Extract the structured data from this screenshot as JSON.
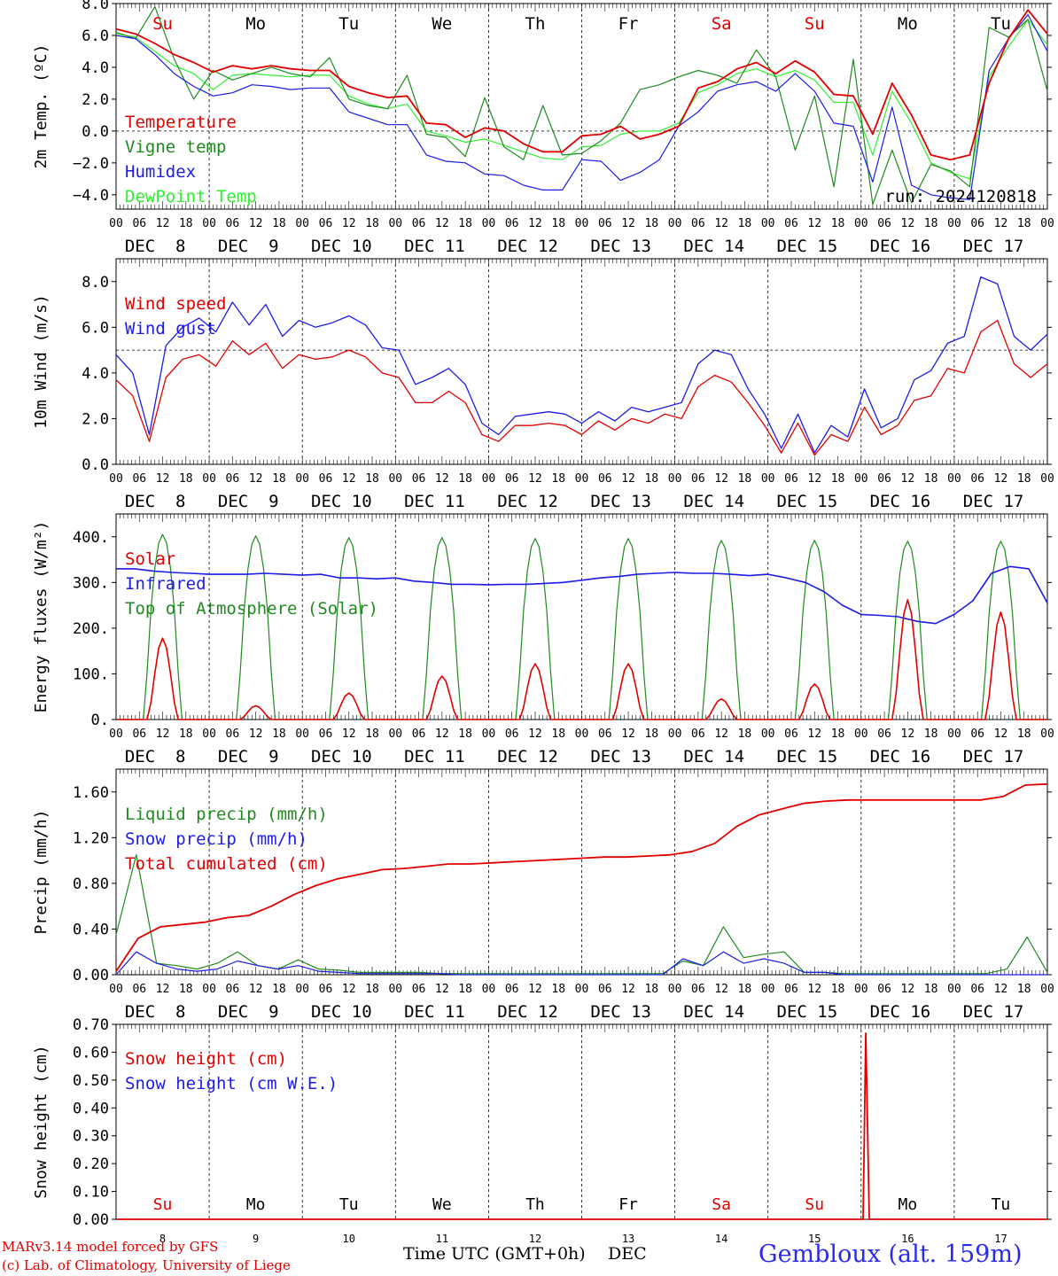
{
  "colors": {
    "red": "#e00000",
    "green": "#1f8a1f",
    "blue": "#1c1ce6",
    "lightgreen": "#33ee33",
    "axis": "#000000"
  },
  "footer": {
    "model_line": "MARv3.14 model forced by GFS",
    "copyright_line": "(c) Lab. of Climatology, University of Liege",
    "time_axis_label": "Time UTC (GMT+0h)",
    "month_label": "DEC",
    "station": "Gembloux (alt. 159m)"
  },
  "chart_data": [
    {
      "type": "line",
      "ylabel": "2m Temp. (ºC)",
      "ylim": [
        -4.9,
        8.0
      ],
      "yticks": [
        8.0,
        6.0,
        4.0,
        2.0,
        0.0,
        -2.0,
        -4.0
      ],
      "ytick_labels": [
        "8.0",
        "6.0",
        "4.0",
        "2.0",
        "0.0",
        "−2.0",
        "−4.0"
      ],
      "reference_line": 0.0,
      "days": [
        "Su",
        "Mo",
        "Tu",
        "We",
        "Th",
        "Fr",
        "Sa",
        "Su",
        "Mo",
        "Tu"
      ],
      "day_colors": [
        "red",
        "black",
        "black",
        "black",
        "black",
        "black",
        "red",
        "red",
        "black",
        "black"
      ],
      "date_labels": [
        "DEC  8",
        "DEC  9",
        "DEC 10",
        "DEC 11",
        "DEC 12",
        "DEC 13",
        "DEC 14",
        "DEC 15",
        "DEC 16",
        "DEC 17"
      ],
      "hour_labels": [
        "00",
        "06",
        "12",
        "18"
      ],
      "run_label": "run: 2024120818",
      "x_step_hours": 6,
      "series": [
        {
          "name": "Temperature",
          "color": "red",
          "values": [
            6.4,
            6.1,
            5.5,
            4.8,
            4.3,
            3.7,
            4.1,
            3.9,
            4.1,
            3.9,
            3.8,
            3.8,
            2.8,
            2.4,
            2.1,
            2.2,
            0.5,
            0.4,
            -0.4,
            0.2,
            0.0,
            -0.8,
            -1.3,
            -1.3,
            -0.3,
            -0.2,
            0.3,
            -0.5,
            -0.2,
            0.3,
            2.7,
            3.1,
            3.9,
            4.3,
            3.6,
            4.4,
            3.7,
            2.3,
            2.2,
            -0.2,
            3.0,
            1.0,
            -1.5,
            -1.8,
            -1.5,
            3.0,
            5.8,
            7.6,
            6.1
          ]
        },
        {
          "name": "Vigne temp",
          "color": "green",
          "values": [
            6.2,
            5.8,
            7.8,
            4.5,
            2.0,
            3.8,
            3.2,
            3.6,
            4.0,
            3.6,
            3.4,
            4.6,
            2.0,
            1.6,
            1.4,
            3.5,
            -0.2,
            -0.4,
            -1.6,
            2.1,
            -1.0,
            -1.8,
            1.6,
            -1.5,
            -1.4,
            -0.6,
            0.5,
            2.6,
            2.9,
            3.4,
            3.8,
            3.5,
            3.0,
            5.1,
            3.4,
            -1.2,
            2.2,
            -3.5,
            4.5,
            -4.6,
            -1.2,
            -4.5,
            -2.1,
            -2.5,
            -3.5,
            6.5,
            5.9,
            7.0,
            2.5
          ]
        },
        {
          "name": "Humidex",
          "color": "blue",
          "values": [
            6.0,
            5.8,
            4.8,
            3.6,
            2.8,
            2.2,
            2.4,
            2.9,
            2.8,
            2.6,
            2.7,
            2.7,
            1.2,
            0.8,
            0.4,
            0.4,
            -1.5,
            -1.9,
            -2.0,
            -2.7,
            -2.8,
            -3.4,
            -3.7,
            -3.7,
            -1.8,
            -1.9,
            -3.1,
            -2.6,
            -1.8,
            0.3,
            1.2,
            2.5,
            2.9,
            3.1,
            2.5,
            3.6,
            2.5,
            0.5,
            0.3,
            -3.2,
            1.5,
            -3.4,
            -4.0,
            -4.2,
            -4.3,
            3.8,
            5.8,
            7.3,
            5.0
          ]
        },
        {
          "name": "DewPoint Temp",
          "color": "lightgreen",
          "values": [
            6.1,
            5.9,
            5.0,
            4.1,
            3.6,
            2.6,
            3.5,
            3.6,
            3.5,
            3.4,
            3.5,
            3.5,
            2.2,
            1.7,
            1.4,
            1.7,
            0.0,
            -0.3,
            -0.7,
            -0.5,
            -0.9,
            -1.3,
            -1.7,
            -1.8,
            -1.0,
            -0.9,
            -0.2,
            0.0,
            0.0,
            0.5,
            2.4,
            2.9,
            3.6,
            3.9,
            3.4,
            3.8,
            3.2,
            1.8,
            1.8,
            -1.5,
            2.5,
            0.5,
            -2.0,
            -2.6,
            -3.0,
            3.4,
            5.3,
            7.0,
            5.4
          ]
        }
      ]
    },
    {
      "type": "line",
      "ylabel": "10m Wind (m/s)",
      "ylim": [
        0,
        9.0
      ],
      "yticks": [
        0,
        2,
        4,
        6,
        8
      ],
      "ytick_labels": [
        "0.0",
        "2.0",
        "4.0",
        "6.0",
        "8.0"
      ],
      "reference_line": 5.0,
      "date_labels": [
        "DEC  8",
        "DEC  9",
        "DEC 10",
        "DEC 11",
        "DEC 12",
        "DEC 13",
        "DEC 14",
        "DEC 15",
        "DEC 16",
        "DEC 17"
      ],
      "hour_labels": [
        "00",
        "06",
        "12",
        "18"
      ],
      "x_step_hours": 6,
      "series": [
        {
          "name": "Wind speed",
          "color": "red",
          "values": [
            3.7,
            3.0,
            1.0,
            3.8,
            4.6,
            4.8,
            4.3,
            5.4,
            4.8,
            5.3,
            4.2,
            4.8,
            4.6,
            4.7,
            5.0,
            4.7,
            4.0,
            3.8,
            2.7,
            2.7,
            3.2,
            2.7,
            1.3,
            1.0,
            1.7,
            1.7,
            1.8,
            1.7,
            1.3,
            1.9,
            1.5,
            2.0,
            1.8,
            2.2,
            2.0,
            3.4,
            3.9,
            3.6,
            2.7,
            1.7,
            0.5,
            1.8,
            0.4,
            1.3,
            1.0,
            2.5,
            1.3,
            1.7,
            2.8,
            3.0,
            4.2,
            4.0,
            5.8,
            6.3,
            4.4,
            3.8,
            4.4
          ]
        },
        {
          "name": "Wind gust",
          "color": "blue",
          "values": [
            4.8,
            4.0,
            1.3,
            5.2,
            6.0,
            6.4,
            5.8,
            7.1,
            6.1,
            7.0,
            5.6,
            6.3,
            6.0,
            6.2,
            6.5,
            6.1,
            5.1,
            5.0,
            3.5,
            3.8,
            4.2,
            3.5,
            1.8,
            1.3,
            2.1,
            2.2,
            2.3,
            2.2,
            1.8,
            2.3,
            1.9,
            2.5,
            2.3,
            2.5,
            2.7,
            4.4,
            5.0,
            4.8,
            3.3,
            2.2,
            0.7,
            2.2,
            0.5,
            1.7,
            1.2,
            3.3,
            1.6,
            2.0,
            3.7,
            4.1,
            5.3,
            5.6,
            8.2,
            7.9,
            5.6,
            5.0,
            5.7
          ]
        }
      ]
    },
    {
      "type": "line",
      "ylabel": "Energy fluxes (W/m²)",
      "ylim": [
        0,
        450
      ],
      "yticks": [
        0,
        100,
        200,
        300,
        400
      ],
      "ytick_labels": [
        "0.",
        "100.",
        "200.",
        "300.",
        "400."
      ],
      "date_labels": [
        "DEC  8",
        "DEC  9",
        "DEC 10",
        "DEC 11",
        "DEC 12",
        "DEC 13",
        "DEC 14",
        "DEC 15",
        "DEC 16",
        "DEC 17"
      ],
      "hour_labels": [
        "00",
        "06",
        "12",
        "18"
      ],
      "x_step_hours": 6,
      "series": [
        {
          "name": "Solar",
          "color": "red",
          "daily_peak_wm2": [
            178,
            30,
            58,
            95,
            122,
            122,
            45,
            78,
            262,
            235
          ]
        },
        {
          "name": "Infrared",
          "color": "blue",
          "values": [
            330,
            330,
            325,
            322,
            320,
            318,
            318,
            318,
            320,
            318,
            316,
            318,
            310,
            310,
            308,
            310,
            303,
            300,
            296,
            296,
            295,
            296,
            296,
            298,
            300,
            305,
            310,
            313,
            318,
            320,
            322,
            320,
            320,
            318,
            315,
            318,
            310,
            300,
            280,
            250,
            230,
            228,
            225,
            215,
            210,
            230,
            260,
            320,
            335,
            330,
            255
          ]
        },
        {
          "name": "Top of Atmosphere (Solar)",
          "color": "green",
          "daily_peak_wm2": [
            405,
            402,
            398,
            398,
            396,
            396,
            392,
            392,
            390,
            390
          ]
        }
      ]
    },
    {
      "type": "line",
      "ylabel": "Precip (mm/h)",
      "ylim": [
        0,
        1.8
      ],
      "yticks": [
        0,
        0.4,
        0.8,
        1.2,
        1.6
      ],
      "ytick_labels": [
        "0.00",
        "0.40",
        "0.80",
        "1.20",
        "1.60"
      ],
      "date_labels": [
        "DEC  8",
        "DEC  9",
        "DEC 10",
        "DEC 11",
        "DEC 12",
        "DEC 13",
        "DEC 14",
        "DEC 15",
        "DEC 16",
        "DEC 17"
      ],
      "hour_labels": [
        "00",
        "06",
        "12",
        "18"
      ],
      "x_step_hours": 6,
      "series": [
        {
          "name": "Liquid precip (mm/h)",
          "color": "green",
          "values": [
            0.35,
            1.05,
            0.1,
            0.08,
            0.05,
            0.1,
            0.2,
            0.08,
            0.05,
            0.13,
            0.05,
            0.04,
            0.02,
            0.02,
            0.02,
            0.02,
            0.01,
            0.01,
            0.01,
            0.01,
            0.01,
            0.01,
            0.01,
            0.01,
            0.01,
            0.01,
            0.01,
            0.01,
            0.12,
            0.08,
            0.42,
            0.15,
            0.18,
            0.2,
            0.02,
            0.02,
            0.01,
            0.01,
            0.01,
            0.01,
            0.01,
            0.01,
            0.01,
            0.01,
            0.05,
            0.33,
            0.02
          ]
        },
        {
          "name": "Snow precip (mm/h)",
          "color": "blue",
          "values": [
            0.0,
            0.2,
            0.1,
            0.05,
            0.03,
            0.05,
            0.12,
            0.08,
            0.05,
            0.08,
            0.03,
            0.02,
            0.01,
            0.01,
            0.01,
            0.01,
            0.01,
            0.0,
            0.0,
            0.0,
            0.0,
            0.0,
            0.0,
            0.0,
            0.0,
            0.0,
            0.0,
            0.0,
            0.14,
            0.08,
            0.2,
            0.1,
            0.14,
            0.1,
            0.02,
            0.02,
            0.0,
            0.0,
            0.0,
            0.0,
            0.0,
            0.0,
            0.0,
            0.0,
            0.0,
            0.0,
            0.0
          ]
        },
        {
          "name": "Total cumulated (cm)",
          "color": "red",
          "values": [
            0.03,
            0.32,
            0.42,
            0.44,
            0.46,
            0.5,
            0.52,
            0.6,
            0.7,
            0.78,
            0.84,
            0.88,
            0.92,
            0.93,
            0.95,
            0.97,
            0.97,
            0.98,
            0.99,
            1.0,
            1.01,
            1.02,
            1.03,
            1.03,
            1.04,
            1.05,
            1.08,
            1.15,
            1.3,
            1.4,
            1.45,
            1.5,
            1.52,
            1.53,
            1.53,
            1.53,
            1.53,
            1.53,
            1.53,
            1.53,
            1.56,
            1.66,
            1.67
          ]
        }
      ]
    },
    {
      "type": "line",
      "ylabel": "Snow height (cm)",
      "ylim": [
        0,
        0.7
      ],
      "yticks": [
        0,
        0.1,
        0.2,
        0.3,
        0.4,
        0.5,
        0.6,
        0.7
      ],
      "ytick_labels": [
        "0.00",
        "0.10",
        "0.20",
        "0.30",
        "0.40",
        "0.50",
        "0.60",
        "0.70"
      ],
      "days": [
        "Su",
        "Mo",
        "Tu",
        "We",
        "Th",
        "Fr",
        "Sa",
        "Su",
        "Mo",
        "Tu"
      ],
      "day_colors": [
        "red",
        "black",
        "black",
        "black",
        "black",
        "black",
        "red",
        "red",
        "black",
        "black"
      ],
      "day_numbers": [
        "8",
        "9",
        "10",
        "11",
        "12",
        "13",
        "14",
        "15",
        "16",
        "17"
      ],
      "series": [
        {
          "name": "Snow height (cm)",
          "color": "red",
          "spike": {
            "day_fraction": 8.05,
            "value": 0.67
          }
        },
        {
          "name": "Snow height (cm W.E.)",
          "color": "blue",
          "values": []
        }
      ]
    }
  ]
}
